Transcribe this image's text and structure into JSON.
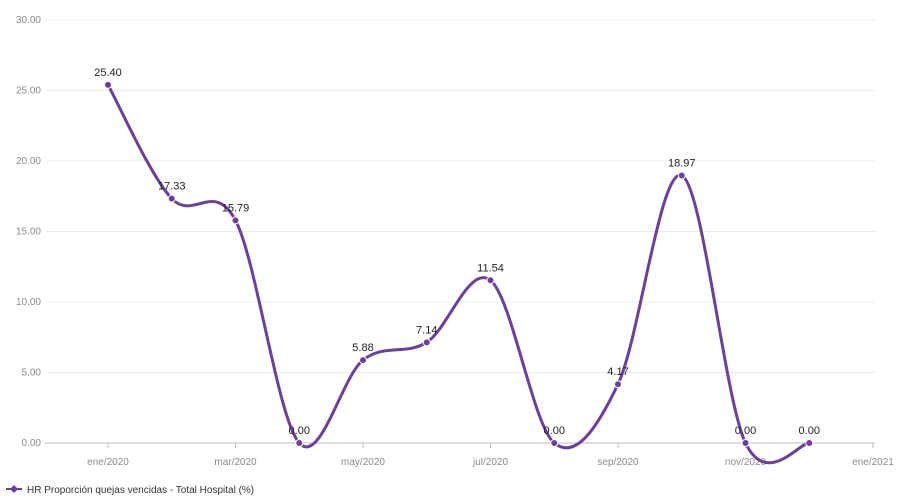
{
  "chart_data": {
    "type": "line",
    "title": "",
    "xlabel": "",
    "ylabel": "",
    "ylim": [
      0,
      30
    ],
    "y_ticks": [
      0,
      5,
      10,
      15,
      20,
      25,
      30
    ],
    "y_tick_labels": [
      "0.00",
      "5.00",
      "10.00",
      "15.00",
      "20.00",
      "25.00",
      "30.00"
    ],
    "x_tick_labels": [
      "ene/2020",
      "mar/2020",
      "may/2020",
      "jul/2020",
      "sep/2020",
      "nov/2020",
      "ene/2021"
    ],
    "x_tick_months": [
      0,
      2,
      4,
      6,
      8,
      10,
      12
    ],
    "x_range_months": [
      0,
      12
    ],
    "grid": "horizontal",
    "curve": "smooth",
    "legend_position": "bottom-left",
    "series": [
      {
        "name": "HR Proporción quejas vencidas - Total Hospital (%)",
        "color": "#6a3fa0",
        "x": [
          "ene/2020",
          "feb/2020",
          "mar/2020",
          "abr/2020",
          "may/2020",
          "jun/2020",
          "jul/2020",
          "ago/2020",
          "sep/2020",
          "oct/2020",
          "nov/2020",
          "dic/2020"
        ],
        "values": [
          25.4,
          17.33,
          15.79,
          0.0,
          5.88,
          7.14,
          11.54,
          0.0,
          4.17,
          18.97,
          0.0,
          0.0
        ],
        "labels": [
          "25.40",
          "17.33",
          "15.79",
          "0.00",
          "5.88",
          "7.14",
          "11.54",
          "0.00",
          "4.17",
          "18.97",
          "0.00",
          "0.00"
        ]
      }
    ]
  }
}
